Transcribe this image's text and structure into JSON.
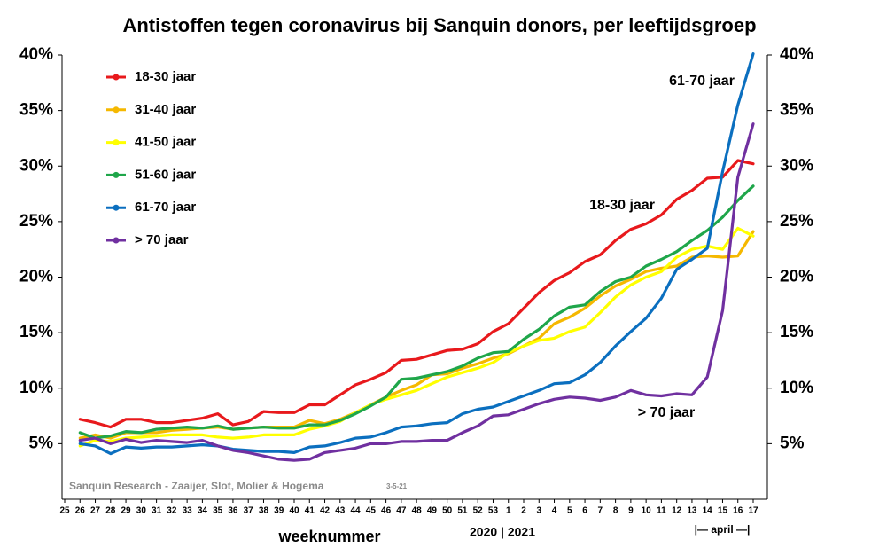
{
  "chart_data": {
    "type": "line",
    "title": "Antistoffen tegen coronavirus bij Sanquin donors, per leeftijdsgroep",
    "xlabel": "weeknummer",
    "annotations": [
      "61-70 jaar",
      "18-30 jaar",
      "> 70 jaar",
      "Sanquin Research - Zaaijer, Slot, Molier & Hogema",
      "3-5-21",
      "2020 | 2021",
      "|— april —|"
    ],
    "categories": [
      "25",
      "26",
      "27",
      "28",
      "29",
      "30",
      "31",
      "32",
      "33",
      "34",
      "35",
      "36",
      "37",
      "38",
      "39",
      "40",
      "41",
      "42",
      "43",
      "44",
      "45",
      "46",
      "47",
      "48",
      "49",
      "50",
      "51",
      "52",
      "53",
      "1",
      "2",
      "3",
      "4",
      "5",
      "6",
      "7",
      "8",
      "9",
      "10",
      "11",
      "12",
      "13",
      "14",
      "15",
      "16",
      "17"
    ],
    "ylim": [
      0,
      40
    ],
    "yticks": [
      {
        "value": 5,
        "label": "5%"
      },
      {
        "value": 10,
        "label": "10%"
      },
      {
        "value": 15,
        "label": "15%"
      },
      {
        "value": 20,
        "label": "20%"
      },
      {
        "value": 25,
        "label": "25%"
      },
      {
        "value": 30,
        "label": "30%"
      },
      {
        "value": 35,
        "label": "35%"
      },
      {
        "value": 40,
        "label": "40%"
      }
    ],
    "y2lim": [
      0,
      40
    ],
    "y2ticks": [
      {
        "value": 5,
        "label": "5%"
      },
      {
        "value": 10,
        "label": "10%"
      },
      {
        "value": 15,
        "label": "15%"
      },
      {
        "value": 20,
        "label": "20%"
      },
      {
        "value": 25,
        "label": "25%"
      },
      {
        "value": 30,
        "label": "30%"
      },
      {
        "value": 35,
        "label": "35%"
      },
      {
        "value": 40,
        "label": "40%"
      }
    ],
    "grid": false,
    "legend": "upper left",
    "series": [
      {
        "name": "18-30 jaar",
        "color": "#e8191c",
        "values": [
          null,
          7.2,
          6.9,
          6.5,
          7.2,
          7.2,
          6.9,
          6.9,
          7.1,
          7.3,
          7.7,
          6.7,
          7.0,
          7.9,
          7.8,
          7.8,
          8.5,
          8.5,
          9.4,
          10.3,
          10.8,
          11.4,
          12.5,
          12.6,
          13.0,
          13.4,
          13.5,
          14.0,
          15.1,
          15.8,
          17.2,
          18.6,
          19.7,
          20.4,
          21.4,
          22.0,
          23.3,
          24.3,
          24.8,
          25.6,
          27.0,
          27.8,
          28.9,
          29.0,
          30.5,
          30.2
        ]
      },
      {
        "name": "31-40 jaar",
        "color": "#f5b800",
        "values": [
          null,
          5.5,
          5.8,
          5.5,
          6.0,
          6.0,
          6.0,
          6.2,
          6.3,
          6.4,
          6.5,
          6.3,
          6.4,
          6.5,
          6.5,
          6.5,
          7.1,
          6.8,
          7.2,
          7.8,
          8.5,
          9.2,
          9.8,
          10.3,
          11.2,
          11.3,
          11.8,
          12.2,
          12.7,
          13.1,
          13.8,
          14.5,
          15.8,
          16.4,
          17.2,
          18.3,
          19.2,
          19.8,
          20.5,
          20.8,
          21.0,
          21.8,
          21.9,
          21.8,
          21.9,
          24.1
        ]
      },
      {
        "name": "41-50 jaar",
        "color": "#ffff00",
        "values": [
          null,
          4.8,
          5.3,
          5.2,
          5.5,
          5.6,
          5.7,
          5.8,
          5.8,
          5.8,
          5.6,
          5.5,
          5.6,
          5.8,
          5.8,
          5.8,
          6.3,
          6.6,
          7.0,
          7.8,
          8.5,
          9.0,
          9.4,
          9.8,
          10.4,
          11.0,
          11.4,
          11.8,
          12.3,
          13.2,
          13.8,
          14.3,
          14.5,
          15.1,
          15.5,
          16.8,
          18.2,
          19.3,
          20.0,
          20.5,
          21.8,
          22.5,
          22.8,
          22.5,
          24.4,
          23.7
        ]
      },
      {
        "name": "51-60 jaar",
        "color": "#1fa64a",
        "values": [
          null,
          6.0,
          5.5,
          5.7,
          6.1,
          6.0,
          6.3,
          6.4,
          6.5,
          6.4,
          6.6,
          6.3,
          6.4,
          6.5,
          6.4,
          6.4,
          6.7,
          6.7,
          7.1,
          7.7,
          8.4,
          9.2,
          10.8,
          10.9,
          11.2,
          11.5,
          12.0,
          12.7,
          13.2,
          13.3,
          14.4,
          15.3,
          16.5,
          17.3,
          17.5,
          18.7,
          19.6,
          20.0,
          21.0,
          21.6,
          22.3,
          23.3,
          24.2,
          25.4,
          26.9,
          28.2
        ]
      },
      {
        "name": "61-70 jaar",
        "color": "#0b6fbf",
        "values": [
          null,
          5.0,
          4.8,
          4.1,
          4.7,
          4.6,
          4.7,
          4.7,
          4.8,
          4.9,
          4.8,
          4.5,
          4.4,
          4.3,
          4.3,
          4.2,
          4.7,
          4.8,
          5.1,
          5.5,
          5.6,
          6.0,
          6.5,
          6.6,
          6.8,
          6.9,
          7.7,
          8.1,
          8.3,
          8.8,
          9.3,
          9.8,
          10.4,
          10.5,
          11.2,
          12.3,
          13.8,
          15.1,
          16.3,
          18.1,
          20.7,
          21.6,
          22.6,
          29.5,
          35.5,
          40.1
        ]
      },
      {
        "name": "> 70 jaar",
        "color": "#7030a0",
        "values": [
          null,
          5.3,
          5.5,
          5.0,
          5.4,
          5.1,
          5.3,
          5.2,
          5.1,
          5.3,
          4.8,
          4.4,
          4.2,
          3.9,
          3.6,
          3.5,
          3.6,
          4.2,
          4.4,
          4.6,
          5.0,
          5.0,
          5.2,
          5.2,
          5.3,
          5.3,
          6.0,
          6.6,
          7.5,
          7.6,
          8.1,
          8.6,
          9.0,
          9.2,
          9.1,
          8.9,
          9.2,
          9.8,
          9.4,
          9.3,
          9.5,
          9.4,
          11.0,
          17.0,
          29.0,
          33.8
        ]
      }
    ]
  }
}
